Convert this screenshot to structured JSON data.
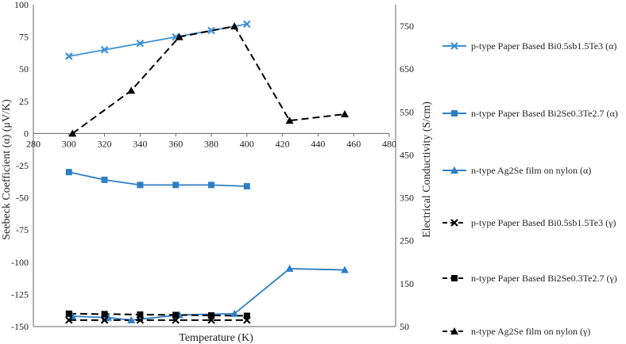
{
  "chart_data": {
    "type": "line",
    "x_label": "Temperature (K)",
    "y_left_label": "Seebeck Coefficient (α) (μV/K)",
    "y_right_label": "Electrical Conductivity (S/cm)",
    "x_range": [
      280,
      480
    ],
    "x_ticks": [
      280,
      300,
      320,
      340,
      360,
      380,
      400,
      420,
      440,
      460,
      480
    ],
    "y_left_range": [
      -150,
      100
    ],
    "y_left_ticks": [
      100,
      75,
      50,
      25,
      0,
      -25,
      -50,
      -75,
      -100,
      -125,
      -150
    ],
    "y_right_range": [
      50,
      800
    ],
    "y_right_ticks": [
      750,
      650,
      550,
      450,
      350,
      250,
      150,
      50
    ],
    "x_tick_labels": [
      "280",
      "300",
      "320",
      "340",
      "360",
      "380",
      "400",
      "420",
      "440",
      "460",
      "480"
    ],
    "y_left_tick_labels": [
      "100",
      "75",
      "50",
      "25",
      "0",
      "-25",
      "-50",
      "-75",
      "-100",
      "-125",
      "-150"
    ],
    "y_right_tick_labels": [
      "750",
      "650",
      "550",
      "450",
      "350",
      "250",
      "150",
      "50"
    ],
    "series": [
      {
        "name": "p-type Paper Based Bi0.5sb1.5Te3 (α)",
        "axis": "left",
        "marker": "x",
        "color": "#3b8fd4",
        "dashed": false,
        "points": [
          [
            300,
            60
          ],
          [
            320,
            65
          ],
          [
            340,
            70
          ],
          [
            360,
            75
          ],
          [
            380,
            80
          ],
          [
            400,
            85
          ]
        ]
      },
      {
        "name": "n-type Paper Based Bi2Se0.3Te2.7 (α)",
        "axis": "left",
        "marker": "square",
        "color": "#2e7ec4",
        "dashed": false,
        "points": [
          [
            300,
            -30
          ],
          [
            320,
            -36
          ],
          [
            340,
            -40
          ],
          [
            360,
            -40
          ],
          [
            380,
            -40
          ],
          [
            400,
            -41
          ]
        ]
      },
      {
        "name": "n-type Ag2Se film on nylon (α)",
        "axis": "left",
        "marker": "triangle",
        "color": "#2e7ec4",
        "dashed": false,
        "points": [
          [
            302,
            -142
          ],
          [
            322,
            -143
          ],
          [
            335,
            -145
          ],
          [
            362,
            -141
          ],
          [
            393,
            -140
          ],
          [
            424,
            -105
          ],
          [
            455,
            -106
          ]
        ]
      },
      {
        "name": "p-type Paper Based Bi0.5sb1.5Te3  (γ)",
        "axis": "right",
        "marker": "x",
        "color": "#000000",
        "dashed": true,
        "points": [
          [
            300,
            65
          ],
          [
            320,
            65
          ],
          [
            340,
            65
          ],
          [
            360,
            65
          ],
          [
            380,
            65
          ],
          [
            400,
            65
          ]
        ]
      },
      {
        "name": "n-type Paper Based Bi2Se0.3Te2.7 (γ)",
        "axis": "right",
        "marker": "square",
        "color": "#000000",
        "dashed": true,
        "points": [
          [
            300,
            80
          ],
          [
            320,
            79
          ],
          [
            340,
            78
          ],
          [
            360,
            77
          ],
          [
            380,
            76
          ],
          [
            400,
            75
          ]
        ]
      },
      {
        "name": "n-type Ag2Se film on nylon (γ)",
        "axis": "right",
        "marker": "triangle",
        "color": "#000000",
        "dashed": true,
        "points": [
          [
            302,
            500
          ],
          [
            335,
            600
          ],
          [
            362,
            725
          ],
          [
            393,
            750
          ],
          [
            424,
            530
          ],
          [
            455,
            545
          ]
        ]
      }
    ],
    "legend_position": "right"
  }
}
